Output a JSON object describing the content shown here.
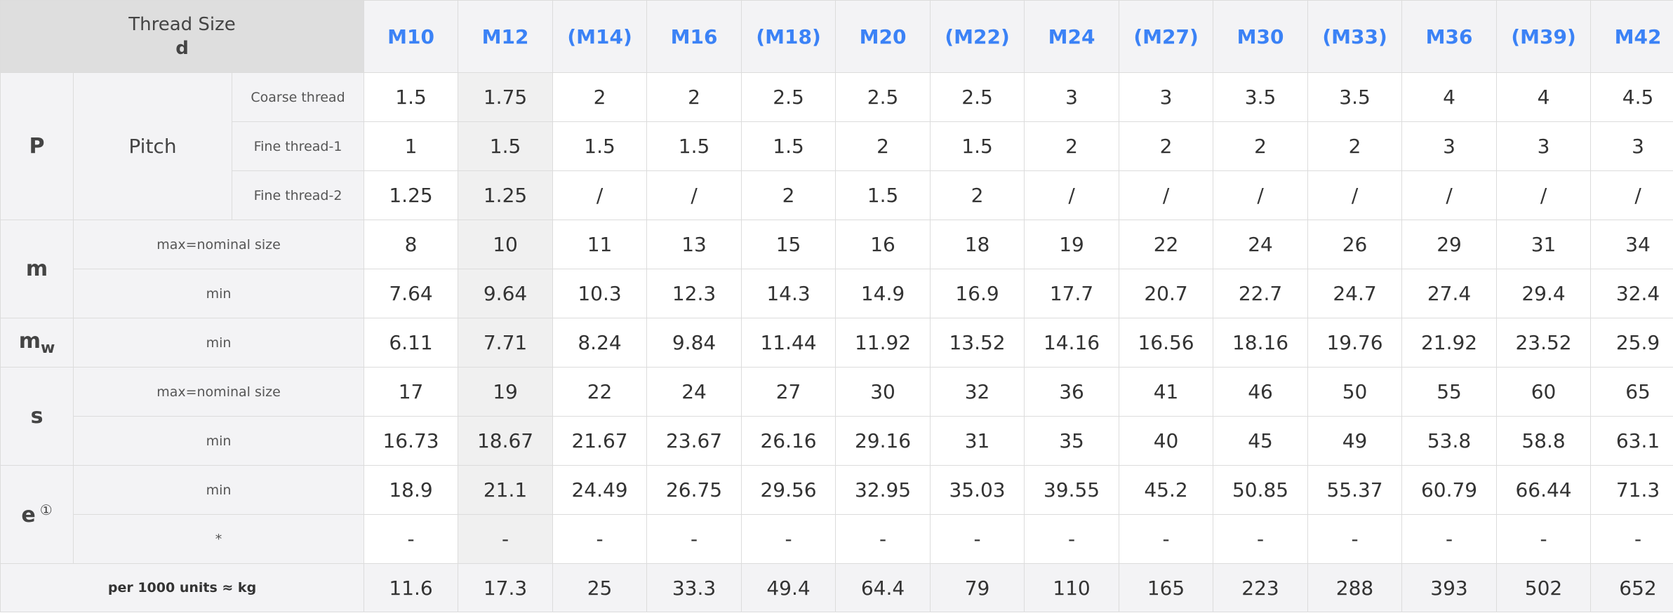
{
  "corner": {
    "line1": "Thread Size",
    "line2": "d"
  },
  "sizes": [
    "M10",
    "M12",
    "(M14)",
    "M16",
    "(M18)",
    "M20",
    "(M22)",
    "M24",
    "(M27)",
    "M30",
    "(M33)",
    "M36",
    "(M39)",
    "M42"
  ],
  "labels": {
    "P": "P",
    "pitch": "Pitch",
    "coarse": "Coarse thread",
    "fine1": "Fine thread-1",
    "fine2": "Fine thread-2",
    "m": "m",
    "mw_main": "m",
    "mw_sub": "w",
    "s": "s",
    "e": "e",
    "e_note": "①",
    "max_nominal": "max=nominal size",
    "min": "min",
    "star": "*",
    "per1000": "per 1000 units ≈ kg"
  },
  "rows": {
    "coarse": [
      "1.5",
      "1.75",
      "2",
      "2",
      "2.5",
      "2.5",
      "2.5",
      "3",
      "3",
      "3.5",
      "3.5",
      "4",
      "4",
      "4.5"
    ],
    "fine1": [
      "1",
      "1.5",
      "1.5",
      "1.5",
      "1.5",
      "2",
      "1.5",
      "2",
      "2",
      "2",
      "2",
      "3",
      "3",
      "3"
    ],
    "fine2": [
      "1.25",
      "1.25",
      "/",
      "/",
      "2",
      "1.5",
      "2",
      "/",
      "/",
      "/",
      "/",
      "/",
      "/",
      "/"
    ],
    "m_max": [
      "8",
      "10",
      "11",
      "13",
      "15",
      "16",
      "18",
      "19",
      "22",
      "24",
      "26",
      "29",
      "31",
      "34"
    ],
    "m_min": [
      "7.64",
      "9.64",
      "10.3",
      "12.3",
      "14.3",
      "14.9",
      "16.9",
      "17.7",
      "20.7",
      "22.7",
      "24.7",
      "27.4",
      "29.4",
      "32.4"
    ],
    "mw_min": [
      "6.11",
      "7.71",
      "8.24",
      "9.84",
      "11.44",
      "11.92",
      "13.52",
      "14.16",
      "16.56",
      "18.16",
      "19.76",
      "21.92",
      "23.52",
      "25.9"
    ],
    "s_max": [
      "17",
      "19",
      "22",
      "24",
      "27",
      "30",
      "32",
      "36",
      "41",
      "46",
      "50",
      "55",
      "60",
      "65"
    ],
    "s_min": [
      "16.73",
      "18.67",
      "21.67",
      "23.67",
      "26.16",
      "29.16",
      "31",
      "35",
      "40",
      "45",
      "49",
      "53.8",
      "58.8",
      "63.1"
    ],
    "e_min": [
      "18.9",
      "21.1",
      "24.49",
      "26.75",
      "29.56",
      "32.95",
      "35.03",
      "39.55",
      "45.2",
      "50.85",
      "55.37",
      "60.79",
      "66.44",
      "71.3"
    ],
    "e_star": [
      "-",
      "-",
      "-",
      "-",
      "-",
      "-",
      "-",
      "-",
      "-",
      "-",
      "-",
      "-",
      "-",
      "-"
    ],
    "weight": [
      "11.6",
      "17.3",
      "25",
      "33.3",
      "49.4",
      "64.4",
      "79",
      "110",
      "165",
      "223",
      "288",
      "393",
      "502",
      "652"
    ]
  }
}
